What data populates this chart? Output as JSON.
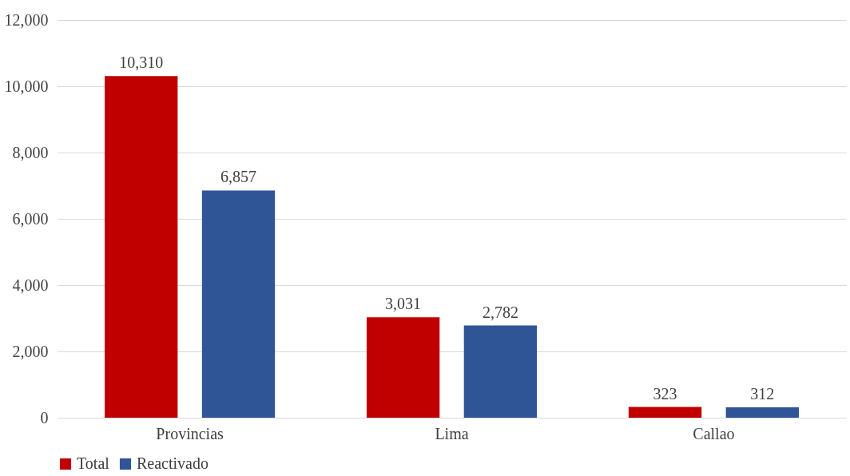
{
  "chart_data": {
    "type": "bar",
    "categories": [
      "Provincias",
      "Lima",
      "Callao"
    ],
    "series": [
      {
        "name": "Total",
        "color": "#c00000",
        "values": [
          10310,
          3031,
          323
        ],
        "value_labels": [
          "10,310",
          "3,031",
          "323"
        ]
      },
      {
        "name": "Reactivado",
        "color": "#2f5597",
        "values": [
          6857,
          2782,
          312
        ],
        "value_labels": [
          "6,857",
          "2,782",
          "312"
        ]
      }
    ],
    "ylim": [
      0,
      12000
    ],
    "yticks": [
      {
        "value": 0,
        "label": "0"
      },
      {
        "value": 2000,
        "label": "2,000"
      },
      {
        "value": 4000,
        "label": "4,000"
      },
      {
        "value": 6000,
        "label": "6,000"
      },
      {
        "value": 8000,
        "label": "8,000"
      },
      {
        "value": 10000,
        "label": "10,000"
      },
      {
        "value": 12000,
        "label": "12,000"
      }
    ],
    "grid": "y",
    "legend": "bottom"
  }
}
